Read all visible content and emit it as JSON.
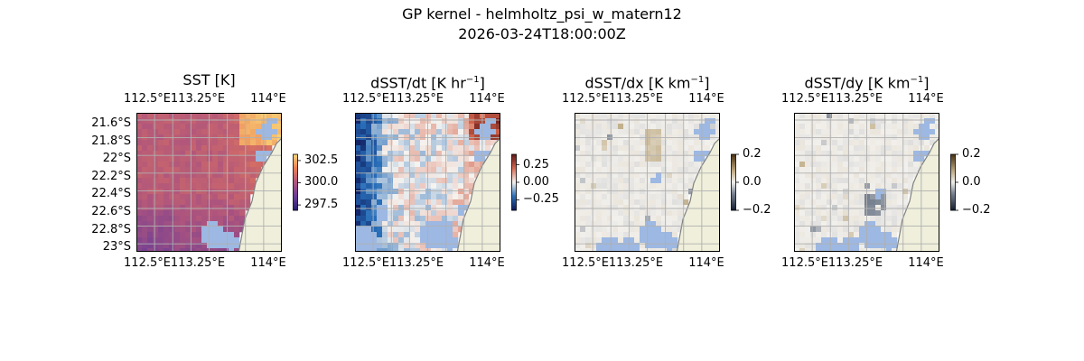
{
  "figure": {
    "title_line1": "GP kernel - helmholtz_psi_w_matern12",
    "title_line2": "2026-03-24T18:00:00Z"
  },
  "chart_data": [
    {
      "type": "heatmap",
      "title": "SST [K]",
      "title_base": "SST [K]",
      "title_sup": "",
      "title_tail": "",
      "colormap": "plasma-like",
      "x_ticks": [
        "112.5°E",
        "113.25°E",
        "114°E"
      ],
      "y_ticks": [
        "21.6°S",
        "21.8°S",
        "22°S",
        "22.2°S",
        "22.4°S",
        "22.6°S",
        "22.8°S",
        "23°S"
      ],
      "colorbar_ticks": [
        "302.5",
        "300.0",
        "297.5"
      ],
      "colorbar_values": [
        302.5,
        300.0,
        297.5
      ],
      "colorbar_range": [
        296.9,
        303.2
      ],
      "grid": true,
      "ocean_mask_color": "#9db8e2",
      "land_color": "#efefdb",
      "coast_color": "#808080"
    },
    {
      "type": "heatmap",
      "title": "dSST/dt [K hr−1]",
      "title_base": "dSST/dt [K hr",
      "title_sup": "−1",
      "title_tail": "]",
      "colormap": "balance-like",
      "x_ticks": [
        "112.5°E",
        "113.25°E",
        "114°E"
      ],
      "colorbar_ticks": [
        "0.25",
        "0.00",
        "−0.25"
      ],
      "colorbar_values": [
        0.25,
        0.0,
        -0.25
      ],
      "colorbar_range": [
        -0.4,
        0.4
      ],
      "grid": true
    },
    {
      "type": "heatmap",
      "title": "dSST/dx [K km−1]",
      "title_base": "dSST/dx [K km",
      "title_sup": "−1",
      "title_tail": "]",
      "colormap": "diff-like",
      "x_ticks": [
        "112.5°E",
        "113.25°E",
        "114°E"
      ],
      "colorbar_ticks": [
        "0.2",
        "0.0",
        "−0.2"
      ],
      "colorbar_values": [
        0.2,
        0.0,
        -0.2
      ],
      "colorbar_range": [
        -0.2,
        0.2
      ],
      "grid": true
    },
    {
      "type": "heatmap",
      "title": "dSST/dy [K km−1]",
      "title_base": "dSST/dy [K km",
      "title_sup": "−1",
      "title_tail": "]",
      "colormap": "diff-like",
      "x_ticks": [
        "112.5°E",
        "113.25°E",
        "114°E"
      ],
      "colorbar_ticks": [
        "0.2",
        "0.0",
        "−0.2"
      ],
      "colorbar_values": [
        0.2,
        0.0,
        -0.2
      ],
      "colorbar_range": [
        -0.2,
        0.2
      ],
      "grid": true
    }
  ]
}
